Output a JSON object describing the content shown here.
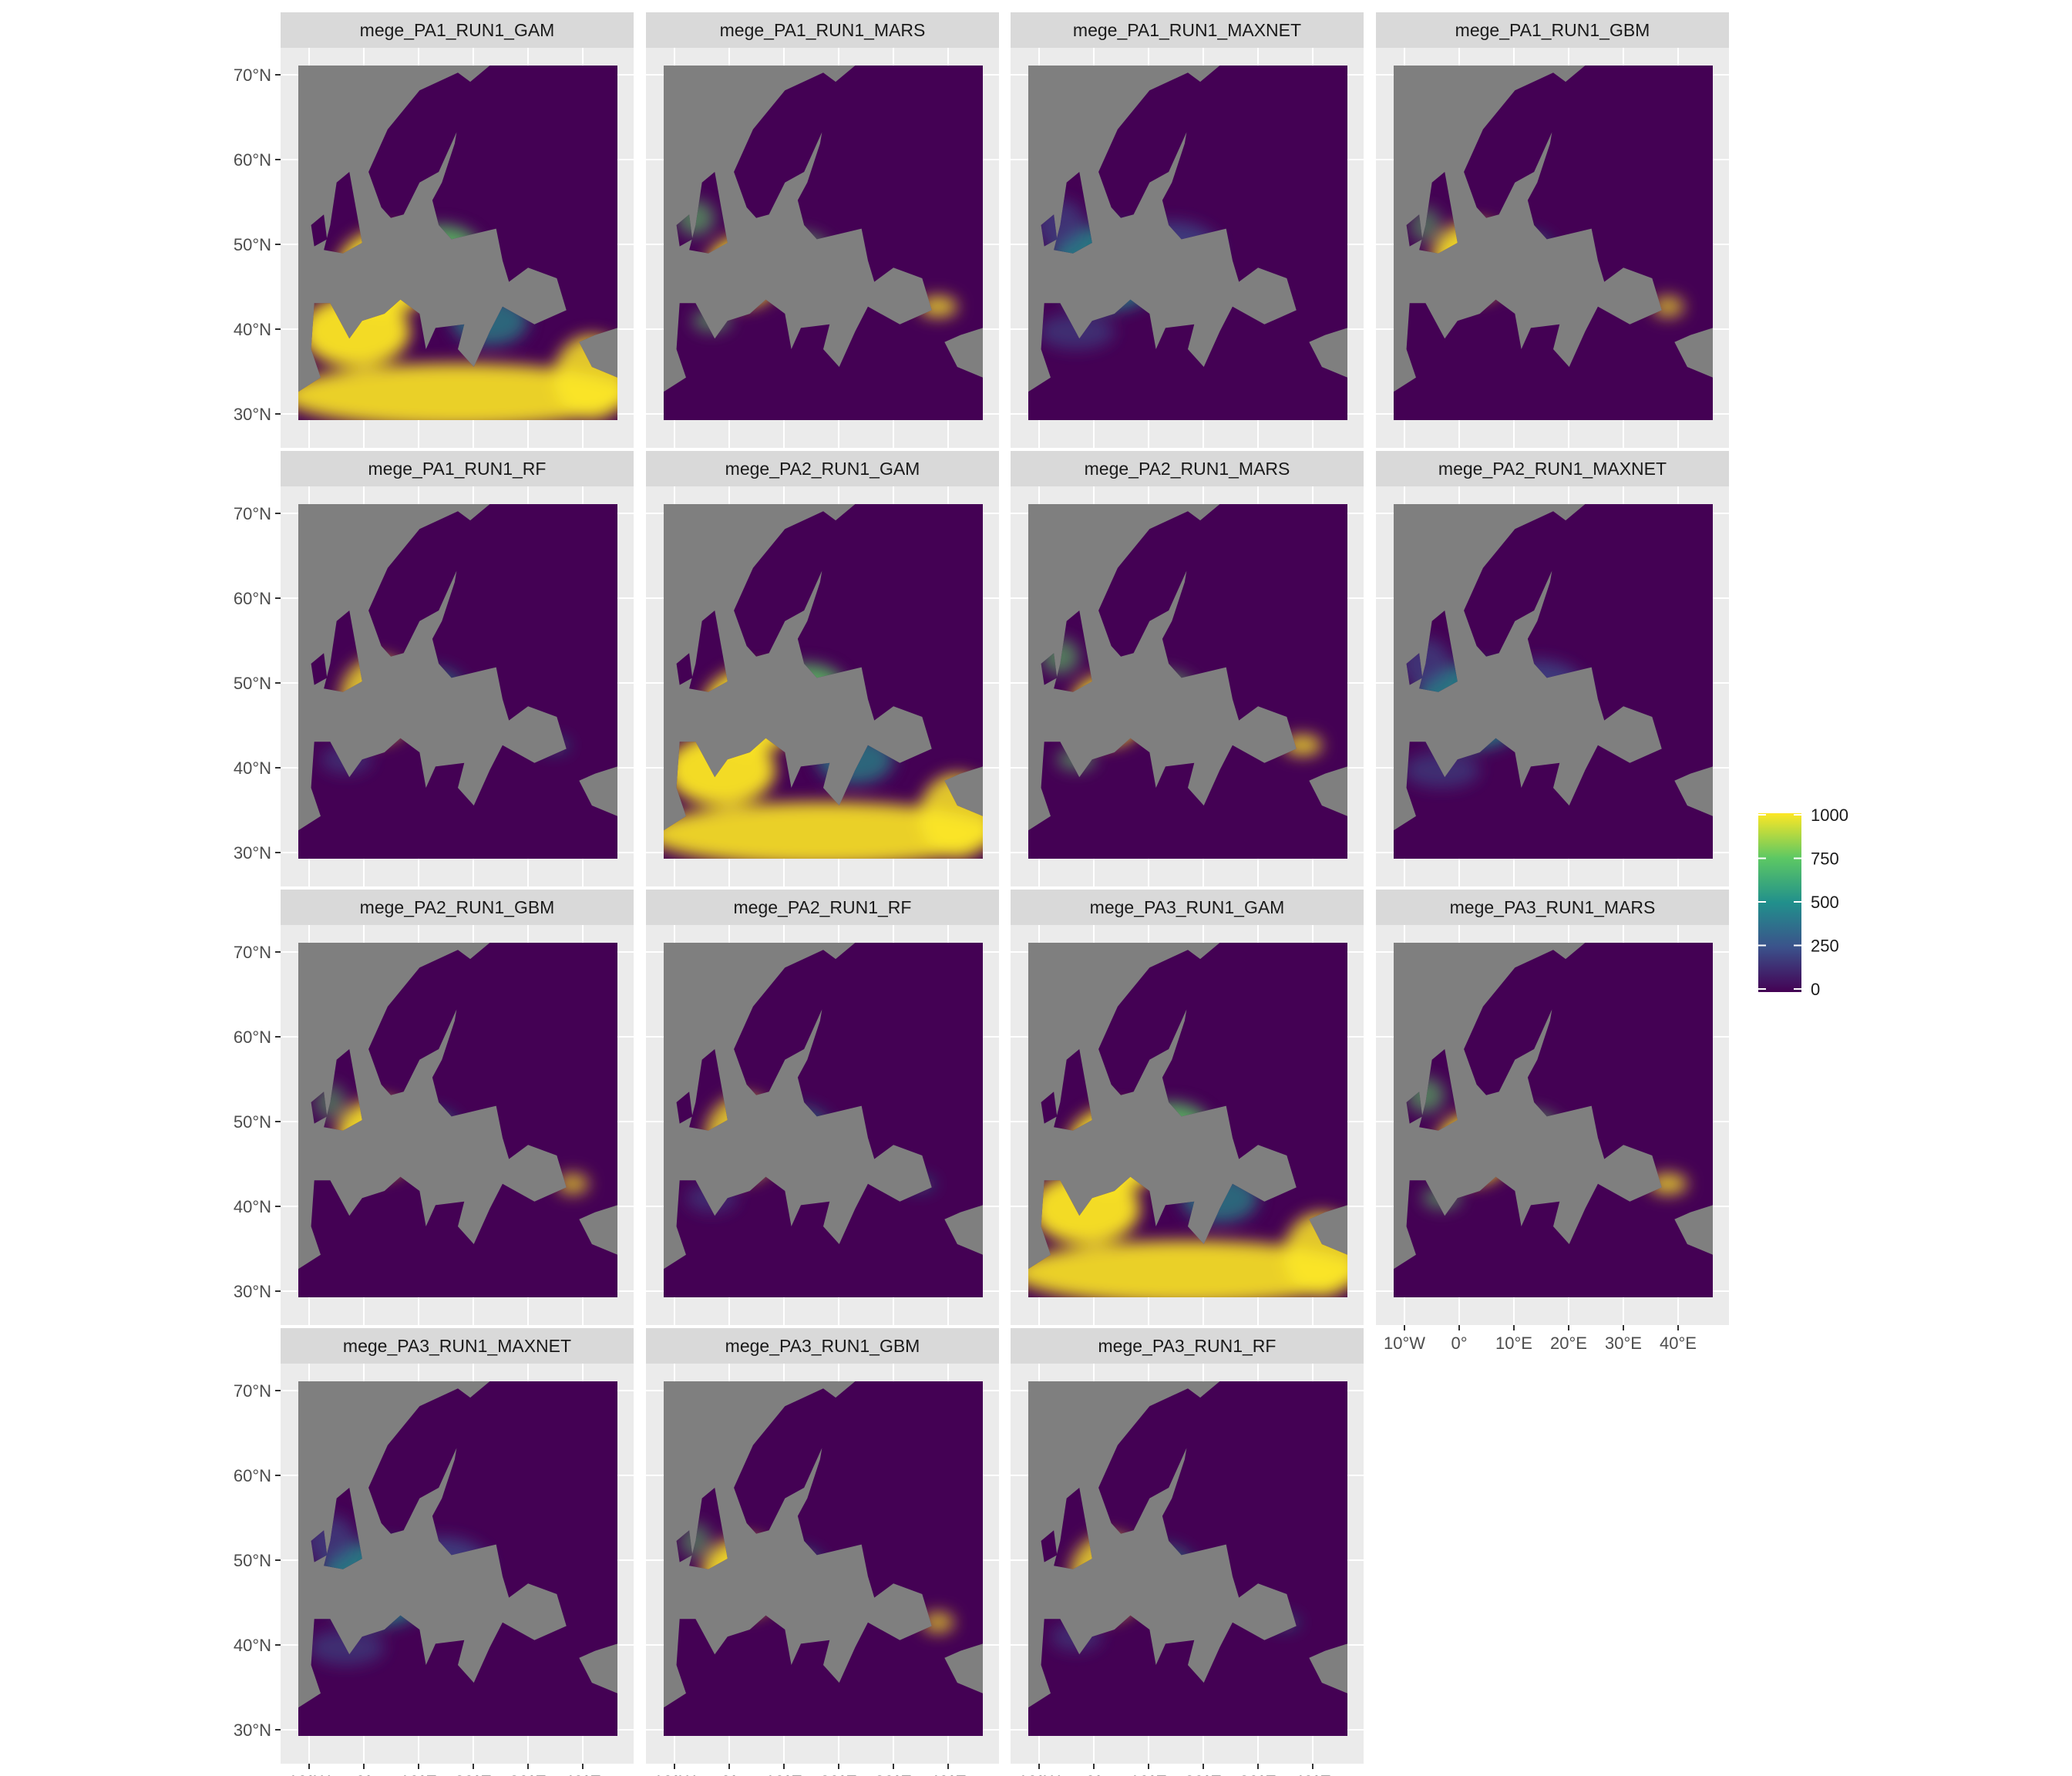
{
  "colors": {
    "panel_background": "#ebebeb",
    "strip_background": "#d9d9d9",
    "grid": "#ffffff",
    "na_fill": "#7f7f7f",
    "viridis": [
      "#440154",
      "#3b528b",
      "#21908c",
      "#5dc863",
      "#fde725"
    ]
  },
  "axis": {
    "y_ticks": [
      "70°N",
      "60°N",
      "50°N",
      "40°N",
      "30°N"
    ],
    "x_ticks": [
      "10°W",
      "0°",
      "10°E",
      "20°E",
      "30°E",
      "40°E"
    ]
  },
  "legend": {
    "labels": [
      "1000",
      "750",
      "500",
      "250",
      "0"
    ],
    "range": [
      0,
      1000
    ]
  },
  "panels": [
    {
      "title": "mege_PA1_RUN1_GAM",
      "pattern": "gam"
    },
    {
      "title": "mege_PA1_RUN1_MARS",
      "pattern": "mars"
    },
    {
      "title": "mege_PA1_RUN1_MAXNET",
      "pattern": "maxnet"
    },
    {
      "title": "mege_PA1_RUN1_GBM",
      "pattern": "gbm"
    },
    {
      "title": "mege_PA1_RUN1_RF",
      "pattern": "rf"
    },
    {
      "title": "mege_PA2_RUN1_GAM",
      "pattern": "gam"
    },
    {
      "title": "mege_PA2_RUN1_MARS",
      "pattern": "mars"
    },
    {
      "title": "mege_PA2_RUN1_MAXNET",
      "pattern": "maxnet"
    },
    {
      "title": "mege_PA2_RUN1_GBM",
      "pattern": "gbm"
    },
    {
      "title": "mege_PA2_RUN1_RF",
      "pattern": "rf"
    },
    {
      "title": "mege_PA3_RUN1_GAM",
      "pattern": "gam"
    },
    {
      "title": "mege_PA3_RUN1_MARS",
      "pattern": "mars"
    },
    {
      "title": "mege_PA3_RUN1_MAXNET",
      "pattern": "maxnet"
    },
    {
      "title": "mege_PA3_RUN1_GBM",
      "pattern": "gbm"
    },
    {
      "title": "mege_PA3_RUN1_RF",
      "pattern": "rf"
    }
  ]
}
